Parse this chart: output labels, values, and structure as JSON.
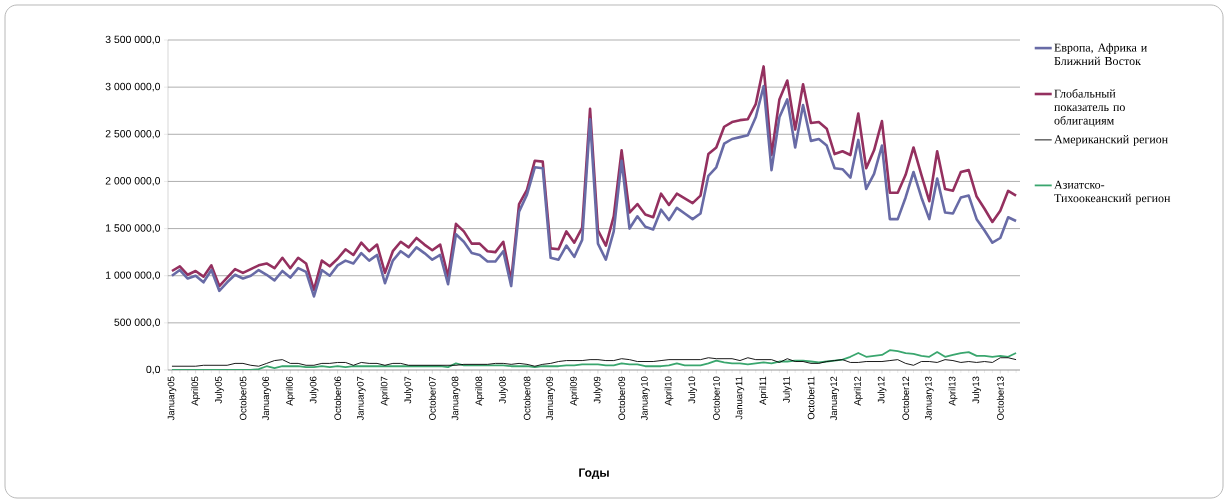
{
  "chart_data": {
    "type": "line",
    "xlabel": "Годы",
    "categories": [
      "January05",
      null,
      null,
      "April05",
      null,
      null,
      "July05",
      null,
      null,
      "October05",
      null,
      null,
      "January06",
      null,
      null,
      "April06",
      null,
      null,
      "July06",
      null,
      null,
      "October06",
      null,
      null,
      "January07",
      null,
      null,
      "April07",
      null,
      null,
      "July07",
      null,
      null,
      "October07",
      null,
      null,
      "January08",
      null,
      null,
      "April08",
      null,
      null,
      "July08",
      null,
      null,
      "October08",
      null,
      null,
      "January09",
      null,
      null,
      "April09",
      null,
      null,
      "July09",
      null,
      null,
      "October09",
      null,
      null,
      "January10",
      null,
      null,
      "April10",
      null,
      null,
      "July10",
      null,
      null,
      "October10",
      null,
      null,
      "January11",
      null,
      null,
      "April11",
      null,
      null,
      "July11",
      null,
      null,
      "October11",
      null,
      null,
      "January12",
      null,
      null,
      "April12",
      null,
      null,
      "July12",
      null,
      null,
      "October12",
      null,
      null,
      "January13",
      null,
      null,
      "April13",
      null,
      null,
      "July13",
      null,
      null,
      "October13",
      null,
      null
    ],
    "series": [
      {
        "name": "Европа, Африка и Ближний Восток",
        "color": "#686ba6",
        "values": [
          1000000,
          1060000,
          970000,
          1000000,
          930000,
          1060000,
          840000,
          930000,
          1010000,
          970000,
          1000000,
          1060000,
          1010000,
          950000,
          1050000,
          980000,
          1080000,
          1040000,
          780000,
          1060000,
          1000000,
          1110000,
          1160000,
          1130000,
          1240000,
          1160000,
          1220000,
          920000,
          1160000,
          1260000,
          1200000,
          1300000,
          1240000,
          1170000,
          1220000,
          910000,
          1440000,
          1360000,
          1240000,
          1220000,
          1150000,
          1150000,
          1260000,
          890000,
          1680000,
          1860000,
          2150000,
          2140000,
          1190000,
          1170000,
          1320000,
          1200000,
          1380000,
          2660000,
          1340000,
          1170000,
          1470000,
          2220000,
          1500000,
          1630000,
          1520000,
          1490000,
          1700000,
          1590000,
          1720000,
          1660000,
          1600000,
          1660000,
          2060000,
          2150000,
          2400000,
          2450000,
          2470000,
          2490000,
          2680000,
          3010000,
          2120000,
          2680000,
          2870000,
          2360000,
          2810000,
          2430000,
          2450000,
          2380000,
          2140000,
          2130000,
          2040000,
          2440000,
          1920000,
          2080000,
          2380000,
          1600000,
          1600000,
          1830000,
          2100000,
          1830000,
          1600000,
          2030000,
          1670000,
          1660000,
          1830000,
          1850000,
          1600000,
          1480000,
          1350000,
          1400000,
          1620000,
          1580000
        ]
      },
      {
        "name": "Глобальный показатель по облигациям",
        "color": "#94305f",
        "values": [
          1050000,
          1100000,
          1010000,
          1050000,
          990000,
          1110000,
          890000,
          980000,
          1070000,
          1030000,
          1070000,
          1110000,
          1130000,
          1080000,
          1190000,
          1080000,
          1190000,
          1130000,
          850000,
          1160000,
          1100000,
          1180000,
          1280000,
          1220000,
          1350000,
          1260000,
          1330000,
          1030000,
          1260000,
          1360000,
          1300000,
          1400000,
          1330000,
          1270000,
          1330000,
          990000,
          1550000,
          1470000,
          1340000,
          1340000,
          1260000,
          1250000,
          1360000,
          950000,
          1760000,
          1910000,
          2220000,
          2210000,
          1290000,
          1280000,
          1470000,
          1350000,
          1510000,
          2770000,
          1480000,
          1320000,
          1630000,
          2330000,
          1670000,
          1760000,
          1650000,
          1620000,
          1870000,
          1750000,
          1870000,
          1820000,
          1770000,
          1850000,
          2290000,
          2360000,
          2580000,
          2630000,
          2650000,
          2660000,
          2820000,
          3220000,
          2280000,
          2870000,
          3070000,
          2550000,
          3030000,
          2620000,
          2630000,
          2560000,
          2290000,
          2320000,
          2280000,
          2720000,
          2140000,
          2330000,
          2640000,
          1880000,
          1880000,
          2070000,
          2360000,
          2070000,
          1790000,
          2320000,
          1920000,
          1900000,
          2100000,
          2120000,
          1840000,
          1710000,
          1570000,
          1690000,
          1900000,
          1850000
        ]
      },
      {
        "name": "Американский регион",
        "color": "#000000",
        "values": [
          40000,
          40000,
          40000,
          40000,
          50000,
          50000,
          50000,
          50000,
          70000,
          70000,
          50000,
          40000,
          70000,
          100000,
          110000,
          70000,
          70000,
          50000,
          50000,
          70000,
          70000,
          80000,
          80000,
          50000,
          80000,
          70000,
          70000,
          50000,
          70000,
          70000,
          50000,
          50000,
          50000,
          50000,
          50000,
          50000,
          50000,
          60000,
          60000,
          60000,
          60000,
          70000,
          70000,
          60000,
          70000,
          60000,
          40000,
          60000,
          70000,
          90000,
          100000,
          100000,
          100000,
          110000,
          110000,
          100000,
          100000,
          120000,
          110000,
          90000,
          90000,
          90000,
          100000,
          110000,
          110000,
          110000,
          110000,
          110000,
          130000,
          120000,
          120000,
          120000,
          100000,
          130000,
          110000,
          110000,
          110000,
          80000,
          120000,
          90000,
          90000,
          70000,
          70000,
          90000,
          100000,
          110000,
          80000,
          80000,
          90000,
          90000,
          90000,
          100000,
          110000,
          70000,
          50000,
          90000,
          90000,
          80000,
          110000,
          100000,
          80000,
          90000,
          80000,
          90000,
          80000,
          130000,
          130000,
          110000
        ]
      },
      {
        "name": "Азиатско-Тихоокеанский регион",
        "color": "#3aa66e",
        "values": [
          0,
          0,
          0,
          0,
          0,
          0,
          0,
          0,
          0,
          0,
          0,
          10000,
          40000,
          20000,
          40000,
          40000,
          40000,
          30000,
          30000,
          40000,
          30000,
          40000,
          30000,
          40000,
          40000,
          40000,
          40000,
          40000,
          40000,
          40000,
          40000,
          40000,
          40000,
          40000,
          40000,
          30000,
          70000,
          50000,
          50000,
          50000,
          50000,
          50000,
          50000,
          40000,
          40000,
          40000,
          30000,
          40000,
          40000,
          40000,
          50000,
          50000,
          60000,
          60000,
          60000,
          50000,
          50000,
          70000,
          60000,
          60000,
          40000,
          40000,
          40000,
          50000,
          70000,
          50000,
          50000,
          50000,
          70000,
          100000,
          80000,
          70000,
          70000,
          60000,
          70000,
          80000,
          70000,
          90000,
          90000,
          100000,
          100000,
          90000,
          80000,
          90000,
          100000,
          110000,
          140000,
          180000,
          140000,
          150000,
          160000,
          210000,
          200000,
          180000,
          170000,
          150000,
          140000,
          190000,
          140000,
          160000,
          180000,
          190000,
          150000,
          150000,
          140000,
          150000,
          140000,
          180000
        ]
      }
    ],
    "ylim": [
      0,
      3500000
    ],
    "yticks": [
      {
        "value": 0,
        "label": "0,0"
      },
      {
        "value": 500000,
        "label": "500 000,0"
      },
      {
        "value": 1000000,
        "label": "1 000 000,0"
      },
      {
        "value": 1500000,
        "label": "1 500 000,0"
      },
      {
        "value": 2000000,
        "label": "2 000 000,0"
      },
      {
        "value": 2500000,
        "label": "2 500 000,0"
      },
      {
        "value": 3000000,
        "label": "3 000 000,0"
      },
      {
        "value": 3500000,
        "label": "3 500 000,0"
      }
    ],
    "grid": "y",
    "legend": "right"
  }
}
